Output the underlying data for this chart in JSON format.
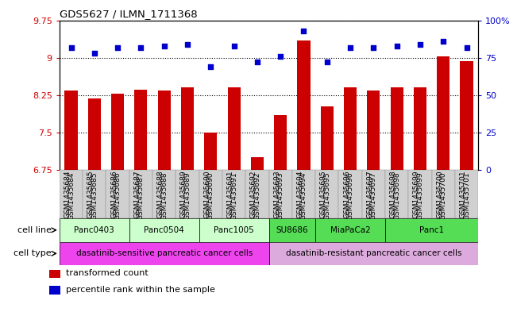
{
  "title": "GDS5627 / ILMN_1711368",
  "samples": [
    "GSM1435684",
    "GSM1435685",
    "GSM1435686",
    "GSM1435687",
    "GSM1435688",
    "GSM1435689",
    "GSM1435690",
    "GSM1435691",
    "GSM1435692",
    "GSM1435693",
    "GSM1435694",
    "GSM1435695",
    "GSM1435696",
    "GSM1435697",
    "GSM1435698",
    "GSM1435699",
    "GSM1435700",
    "GSM1435701"
  ],
  "bar_values": [
    8.35,
    8.19,
    8.28,
    8.36,
    8.35,
    8.4,
    7.5,
    8.4,
    7.0,
    7.85,
    9.35,
    8.02,
    8.4,
    8.35,
    8.4,
    8.4,
    9.03,
    8.93
  ],
  "dot_values": [
    82,
    78,
    82,
    82,
    83,
    84,
    69,
    83,
    72,
    76,
    93,
    72,
    82,
    82,
    83,
    84,
    86,
    82
  ],
  "bar_color": "#cc0000",
  "dot_color": "#0000cc",
  "ylim_left": [
    6.75,
    9.75
  ],
  "ylim_right": [
    0,
    100
  ],
  "yticks_left": [
    6.75,
    7.5,
    8.25,
    9.0,
    9.75
  ],
  "yticks_right": [
    0,
    25,
    50,
    75,
    100
  ],
  "ytick_labels_left": [
    "6.75",
    "7.5",
    "8.25",
    "9",
    "9.75"
  ],
  "ytick_labels_right": [
    "0",
    "25",
    "50",
    "75",
    "100%"
  ],
  "cell_lines": [
    {
      "label": "Panc0403",
      "start": 0,
      "end": 3,
      "color": "#ccffcc"
    },
    {
      "label": "Panc0504",
      "start": 3,
      "end": 6,
      "color": "#ccffcc"
    },
    {
      "label": "Panc1005",
      "start": 6,
      "end": 9,
      "color": "#ccffcc"
    },
    {
      "label": "SU8686",
      "start": 9,
      "end": 11,
      "color": "#55dd55"
    },
    {
      "label": "MiaPaCa2",
      "start": 11,
      "end": 14,
      "color": "#55dd55"
    },
    {
      "label": "Panc1",
      "start": 14,
      "end": 18,
      "color": "#55dd55"
    }
  ],
  "cell_types": [
    {
      "label": "dasatinib-sensitive pancreatic cancer cells",
      "start": 0,
      "end": 9,
      "color": "#ee44ee"
    },
    {
      "label": "dasatinib-resistant pancreatic cancer cells",
      "start": 9,
      "end": 18,
      "color": "#ddaadd"
    }
  ],
  "legend": [
    {
      "color": "#cc0000",
      "label": "transformed count"
    },
    {
      "color": "#0000cc",
      "label": "percentile rank within the sample"
    }
  ],
  "background_color": "#ffffff",
  "n_samples": 18,
  "fig_width": 6.51,
  "fig_height": 3.93,
  "dpi": 100
}
